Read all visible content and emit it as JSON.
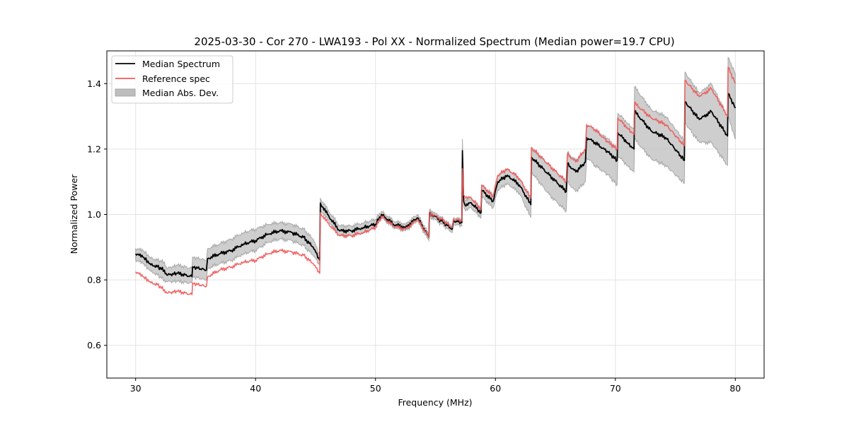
{
  "chart_data": {
    "type": "line",
    "title": "2025-03-30 - Cor 270 - LWA193 - Pol XX - Normalized Spectrum (Median power=19.7 CPU)",
    "xlabel": "Frequency (MHz)",
    "ylabel": "Normalized Power",
    "xlim": [
      27.6,
      82.4
    ],
    "ylim": [
      0.5,
      1.5
    ],
    "xticks": [
      30,
      40,
      50,
      60,
      70,
      80
    ],
    "xtick_labels": [
      "30",
      "40",
      "50",
      "60",
      "70",
      "80"
    ],
    "yticks": [
      0.6,
      0.8,
      1.0,
      1.2,
      1.4
    ],
    "ytick_labels": [
      "0.6",
      "0.8",
      "1.0",
      "1.2",
      "1.4"
    ],
    "grid": true,
    "legend": {
      "position": "top-left",
      "entries": [
        {
          "label": "Median Spectrum",
          "kind": "line",
          "color": "#000000"
        },
        {
          "label": "Reference spec",
          "kind": "line",
          "color": "#f05a5a"
        },
        {
          "label": "Median Abs. Dev.",
          "kind": "band",
          "color": "#bdbdbd"
        }
      ]
    },
    "x": [
      30.0,
      30.6,
      31.2,
      31.8,
      32.4,
      32.6,
      33.5,
      34.7,
      34.75,
      35.9,
      36.0,
      37.0,
      38.0,
      39.0,
      40.0,
      41.0,
      42.0,
      43.0,
      44.0,
      44.8,
      45.35,
      45.4,
      46.0,
      47.0,
      48.0,
      49.0,
      50.0,
      50.5,
      51.5,
      52.5,
      53.5,
      54.45,
      54.5,
      55.5,
      56.4,
      56.5,
      57.2,
      57.25,
      57.35,
      57.45,
      58.0,
      58.8,
      58.85,
      59.8,
      60.2,
      61.0,
      62.0,
      62.95,
      63.0,
      64.5,
      65.9,
      66.0,
      66.7,
      67.5,
      67.6,
      68.3,
      69.4,
      70.15,
      70.2,
      71.0,
      71.55,
      71.6,
      73.0,
      74.2,
      75.75,
      75.8,
      77.0,
      78.0,
      79.35,
      79.4,
      80.0
    ],
    "series": [
      {
        "name": "Median Spectrum",
        "color": "#000000",
        "values": [
          0.88,
          0.87,
          0.85,
          0.84,
          0.83,
          0.815,
          0.82,
          0.81,
          0.84,
          0.83,
          0.865,
          0.88,
          0.89,
          0.91,
          0.92,
          0.94,
          0.95,
          0.945,
          0.93,
          0.9,
          0.86,
          1.035,
          1.0,
          0.95,
          0.95,
          0.96,
          0.97,
          1.0,
          0.97,
          0.96,
          0.99,
          0.93,
          1.005,
          0.98,
          0.955,
          0.98,
          0.975,
          1.195,
          1.04,
          1.03,
          1.035,
          1.005,
          1.075,
          1.04,
          1.1,
          1.12,
          1.09,
          1.03,
          1.175,
          1.12,
          1.07,
          1.155,
          1.13,
          1.16,
          1.235,
          1.22,
          1.19,
          1.165,
          1.25,
          1.22,
          1.2,
          1.315,
          1.255,
          1.235,
          1.165,
          1.345,
          1.29,
          1.315,
          1.24,
          1.37,
          1.325
        ]
      },
      {
        "name": "Reference spec",
        "color": "#f05a5a",
        "values": [
          0.825,
          0.81,
          0.795,
          0.785,
          0.77,
          0.76,
          0.765,
          0.755,
          0.79,
          0.78,
          0.81,
          0.83,
          0.84,
          0.855,
          0.86,
          0.88,
          0.89,
          0.885,
          0.875,
          0.85,
          0.82,
          1.005,
          0.975,
          0.935,
          0.935,
          0.945,
          0.96,
          0.995,
          0.965,
          0.955,
          0.985,
          0.93,
          1.005,
          0.985,
          0.96,
          0.985,
          0.98,
          1.14,
          1.06,
          1.055,
          1.05,
          1.015,
          1.09,
          1.055,
          1.12,
          1.14,
          1.11,
          1.05,
          1.205,
          1.15,
          1.1,
          1.185,
          1.16,
          1.2,
          1.275,
          1.26,
          1.22,
          1.2,
          1.295,
          1.265,
          1.245,
          1.34,
          1.295,
          1.275,
          1.21,
          1.41,
          1.36,
          1.385,
          1.3,
          1.45,
          1.4
        ]
      }
    ],
    "band": {
      "name": "Median Abs. Dev.",
      "color": "#bdbdbd",
      "lower": [
        0.86,
        0.85,
        0.83,
        0.815,
        0.8,
        0.795,
        0.795,
        0.79,
        0.81,
        0.8,
        0.835,
        0.85,
        0.86,
        0.88,
        0.89,
        0.915,
        0.925,
        0.92,
        0.905,
        0.875,
        0.845,
        1.015,
        0.985,
        0.935,
        0.935,
        0.945,
        0.96,
        0.99,
        0.96,
        0.95,
        0.98,
        0.92,
        0.995,
        0.97,
        0.945,
        0.97,
        0.965,
        1.14,
        1.025,
        1.015,
        1.02,
        0.99,
        1.055,
        1.02,
        1.075,
        1.095,
        1.065,
        0.99,
        1.13,
        1.06,
        1.01,
        1.1,
        1.07,
        1.1,
        1.175,
        1.15,
        1.12,
        1.09,
        1.18,
        1.15,
        1.13,
        1.23,
        1.17,
        1.15,
        1.095,
        1.28,
        1.22,
        1.22,
        1.15,
        1.3,
        1.23
      ],
      "upper": [
        0.895,
        0.89,
        0.87,
        0.86,
        0.855,
        0.835,
        0.845,
        0.835,
        0.87,
        0.86,
        0.895,
        0.91,
        0.925,
        0.945,
        0.955,
        0.97,
        0.975,
        0.97,
        0.955,
        0.925,
        0.875,
        1.05,
        1.015,
        0.965,
        0.965,
        0.975,
        0.985,
        1.01,
        0.98,
        0.97,
        1.0,
        0.94,
        1.015,
        0.99,
        0.965,
        0.99,
        0.985,
        1.23,
        1.055,
        1.045,
        1.05,
        1.02,
        1.09,
        1.06,
        1.12,
        1.14,
        1.11,
        1.045,
        1.2,
        1.15,
        1.1,
        1.19,
        1.165,
        1.2,
        1.275,
        1.26,
        1.23,
        1.2,
        1.31,
        1.28,
        1.26,
        1.39,
        1.32,
        1.3,
        1.225,
        1.435,
        1.37,
        1.4,
        1.3,
        1.48,
        1.43
      ]
    }
  }
}
